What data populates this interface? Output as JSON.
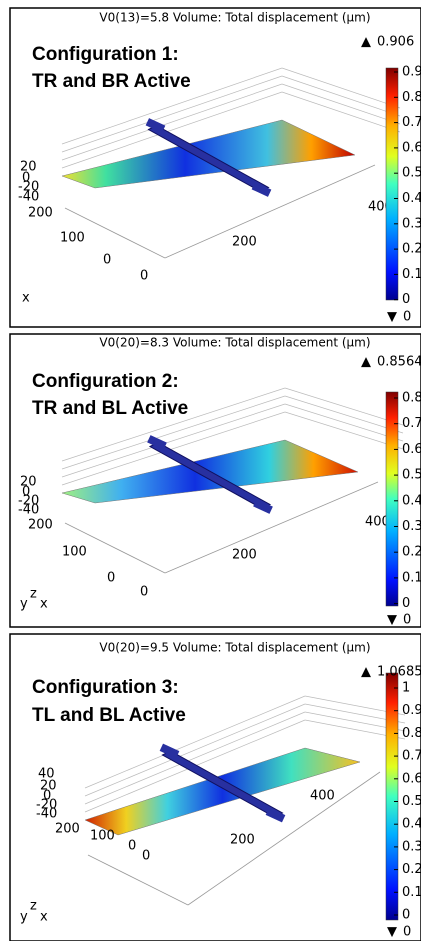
{
  "panels": [
    {
      "header": "V0(13)=5.8   Volume: Total displacement (µm)",
      "title": [
        "Configuration 1:",
        "TR and BR Active"
      ],
      "max": "0.906",
      "min": "0",
      "colorbar_ticks": [
        "0.9",
        "0.8",
        "0.7",
        "0.6",
        "0.5",
        "0.4",
        "0.3",
        "0.2",
        "0.1",
        "0"
      ],
      "axis_labels": [
        "20",
        "0",
        "-20",
        "-40",
        "200",
        "100",
        "0",
        "0",
        "200",
        "400"
      ],
      "axis_triad": [
        "x"
      ]
    },
    {
      "header": "V0(20)=8.3   Volume: Total displacement (µm)",
      "title": [
        "Configuration 2:",
        "TR and BL Active"
      ],
      "max": "0.8564",
      "min": "0",
      "colorbar_ticks": [
        "0.8",
        "0.7",
        "0.6",
        "0.5",
        "0.4",
        "0.3",
        "0.2",
        "0.1",
        "0"
      ],
      "axis_labels": [
        "20",
        "0",
        "-20",
        "-40",
        "200",
        "100",
        "0",
        "0",
        "200",
        "400"
      ],
      "axis_triad": [
        "y",
        "z",
        "x"
      ]
    },
    {
      "header": "V0(20)=9.5   Volume: Total displacement (µm)",
      "title": [
        "Configuration 3:",
        "TL and BL Active"
      ],
      "max": "1.0685",
      "min": "0",
      "colorbar_ticks": [
        "1",
        "0.9",
        "0.8",
        "0.7",
        "0.6",
        "0.5",
        "0.4",
        "0.3",
        "0.2",
        "0.1",
        "0"
      ],
      "axis_labels": [
        "40",
        "20",
        "0",
        "-20",
        "-40",
        "200",
        "100",
        "0",
        "0",
        "200",
        "400"
      ],
      "axis_triad": [
        "y",
        "z",
        "x"
      ]
    }
  ]
}
